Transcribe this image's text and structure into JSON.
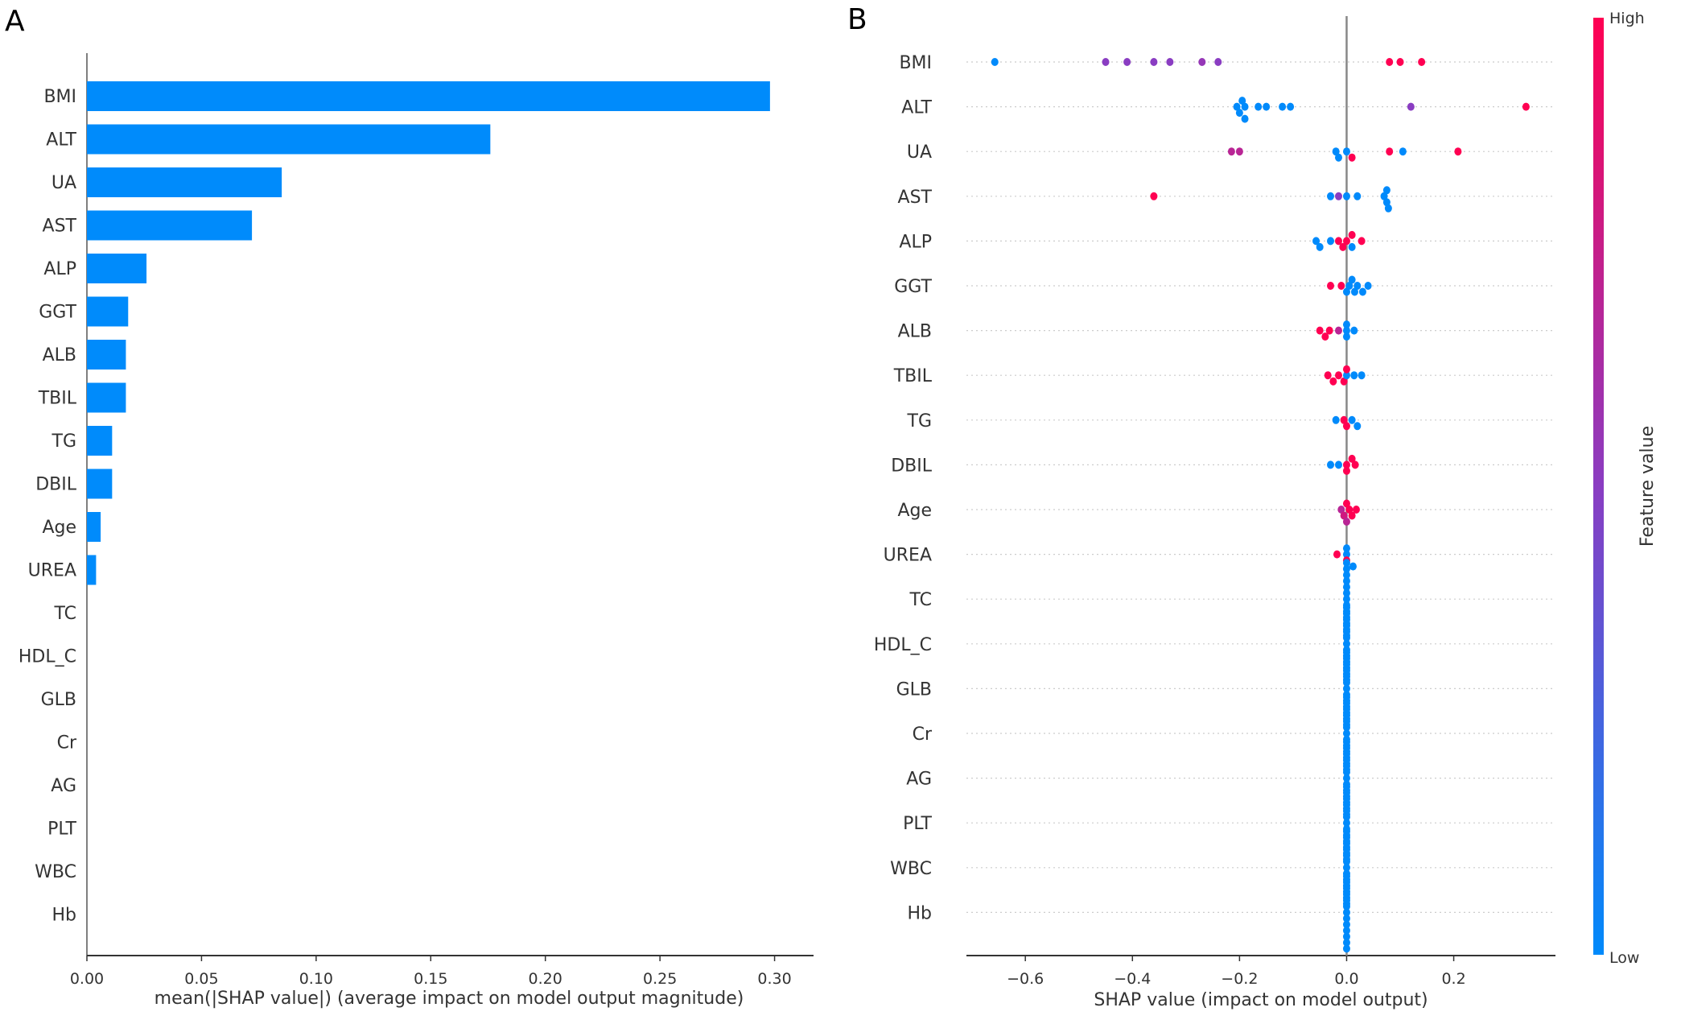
{
  "panels": {
    "a_label": "A",
    "b_label": "B"
  },
  "colors": {
    "bar": "#008bfb",
    "low": "#008afb",
    "mid": "#8a3dc2",
    "high": "#ff0052"
  },
  "chart_data": [
    {
      "type": "bar",
      "orientation": "horizontal",
      "categories": [
        "BMI",
        "ALT",
        "UA",
        "AST",
        "ALP",
        "GGT",
        "ALB",
        "TBIL",
        "TG",
        "DBIL",
        "Age",
        "UREA",
        "TC",
        "HDL_C",
        "GLB",
        "Cr",
        "AG",
        "PLT",
        "WBC",
        "Hb"
      ],
      "values": [
        0.298,
        0.176,
        0.085,
        0.072,
        0.026,
        0.018,
        0.017,
        0.017,
        0.011,
        0.011,
        0.006,
        0.004,
        0,
        0,
        0,
        0,
        0,
        0,
        0,
        0
      ],
      "xlabel": "mean(|SHAP value|) (average impact on model output magnitude)",
      "xlim": [
        0,
        0.317
      ],
      "xticks": [
        "0.00",
        "0.05",
        "0.10",
        "0.15",
        "0.20",
        "0.25",
        "0.30"
      ],
      "grid": false
    },
    {
      "type": "scatter",
      "subtype": "beeswarm",
      "categories": [
        "BMI",
        "ALT",
        "UA",
        "AST",
        "ALP",
        "GGT",
        "ALB",
        "TBIL",
        "TG",
        "DBIL",
        "Age",
        "UREA",
        "TC",
        "HDL_C",
        "GLB",
        "Cr",
        "AG",
        "PLT",
        "WBC",
        "Hb"
      ],
      "points": [
        [
          [
            -0.657,
            0
          ],
          [
            -0.45,
            0.5
          ],
          [
            -0.41,
            0.5
          ],
          [
            -0.36,
            0.5
          ],
          [
            -0.33,
            0.5
          ],
          [
            -0.27,
            0.55
          ],
          [
            -0.24,
            0.5
          ],
          [
            0.08,
            1
          ],
          [
            0.1,
            1
          ],
          [
            0.14,
            1
          ]
        ],
        [
          [
            -0.205,
            0
          ],
          [
            -0.2,
            0
          ],
          [
            -0.195,
            0
          ],
          [
            -0.19,
            0
          ],
          [
            -0.19,
            0
          ],
          [
            -0.165,
            0
          ],
          [
            -0.15,
            0
          ],
          [
            -0.12,
            0
          ],
          [
            -0.105,
            0
          ],
          [
            0.12,
            0.5
          ],
          [
            0.335,
            1
          ]
        ],
        [
          [
            -0.215,
            0.7
          ],
          [
            -0.2,
            0.7
          ],
          [
            -0.02,
            0
          ],
          [
            -0.015,
            0
          ],
          [
            0.0,
            0
          ],
          [
            0.01,
            1
          ],
          [
            0.08,
            1
          ],
          [
            0.105,
            0
          ],
          [
            0.208,
            1
          ]
        ],
        [
          [
            -0.36,
            1
          ],
          [
            -0.03,
            0
          ],
          [
            -0.015,
            0.5
          ],
          [
            0.0,
            0
          ],
          [
            0.02,
            0
          ],
          [
            0.07,
            0
          ],
          [
            0.075,
            0
          ],
          [
            0.075,
            0
          ],
          [
            0.078,
            0
          ]
        ],
        [
          [
            -0.057,
            0
          ],
          [
            -0.05,
            0
          ],
          [
            -0.03,
            0
          ],
          [
            -0.015,
            1
          ],
          [
            -0.007,
            1
          ],
          [
            0.0,
            1
          ],
          [
            0.01,
            0
          ],
          [
            0.01,
            1
          ],
          [
            0.028,
            1
          ]
        ],
        [
          [
            -0.03,
            1
          ],
          [
            -0.01,
            1
          ],
          [
            0.0,
            0
          ],
          [
            0.005,
            0
          ],
          [
            0.01,
            0
          ],
          [
            0.015,
            0
          ],
          [
            0.02,
            0
          ],
          [
            0.03,
            0
          ],
          [
            0.04,
            0
          ]
        ],
        [
          [
            -0.05,
            1
          ],
          [
            -0.04,
            1
          ],
          [
            -0.032,
            1
          ],
          [
            -0.015,
            0.7
          ],
          [
            0.0,
            0
          ],
          [
            0.0,
            0
          ],
          [
            0.0,
            0
          ],
          [
            0.014,
            0
          ]
        ],
        [
          [
            -0.035,
            1
          ],
          [
            -0.025,
            1
          ],
          [
            -0.015,
            1
          ],
          [
            -0.005,
            1
          ],
          [
            0.0,
            0
          ],
          [
            0.0,
            1
          ],
          [
            0.014,
            0
          ],
          [
            0.028,
            0
          ]
        ],
        [
          [
            -0.02,
            0
          ],
          [
            -0.005,
            1
          ],
          [
            0.0,
            1
          ],
          [
            0.01,
            0
          ],
          [
            0.02,
            0
          ]
        ],
        [
          [
            -0.03,
            0
          ],
          [
            -0.015,
            0
          ],
          [
            0.0,
            1
          ],
          [
            0.0,
            1
          ],
          [
            0.01,
            1
          ],
          [
            0.016,
            1
          ]
        ],
        [
          [
            -0.01,
            0.7
          ],
          [
            -0.005,
            0.8
          ],
          [
            0.0,
            1
          ],
          [
            0.0,
            0.7
          ],
          [
            0.005,
            1
          ],
          [
            0.01,
            1
          ],
          [
            0.018,
            1
          ]
        ],
        [
          [
            -0.018,
            1
          ],
          [
            0.0,
            0
          ],
          [
            0.0,
            1
          ],
          [
            0.0,
            0
          ],
          [
            0.012,
            0
          ]
        ],
        [
          [
            0,
            0
          ],
          [
            0,
            0
          ],
          [
            0,
            0
          ],
          [
            0,
            0
          ],
          [
            0,
            0
          ],
          [
            0,
            0
          ],
          [
            0,
            0
          ],
          [
            0,
            0
          ],
          [
            0,
            0
          ],
          [
            0,
            0
          ],
          [
            0,
            0
          ],
          [
            0,
            0
          ],
          [
            0,
            0
          ]
        ],
        [
          [
            0,
            0
          ],
          [
            0,
            0
          ],
          [
            0,
            0
          ],
          [
            0,
            0
          ],
          [
            0,
            0
          ],
          [
            0,
            0
          ],
          [
            0,
            0
          ],
          [
            0,
            0
          ],
          [
            0,
            0
          ],
          [
            0,
            0
          ],
          [
            0,
            0
          ],
          [
            0,
            0
          ],
          [
            0,
            0
          ]
        ],
        [
          [
            0,
            0
          ],
          [
            0,
            0
          ],
          [
            0,
            0
          ],
          [
            0,
            0
          ],
          [
            0,
            0
          ],
          [
            0,
            0
          ],
          [
            0,
            0
          ],
          [
            0,
            0
          ],
          [
            0,
            0
          ],
          [
            0,
            0
          ],
          [
            0,
            0
          ],
          [
            0,
            0
          ],
          [
            0,
            0
          ]
        ],
        [
          [
            0,
            0
          ],
          [
            0,
            0
          ],
          [
            0,
            0
          ],
          [
            0,
            0
          ],
          [
            0,
            0
          ],
          [
            0,
            0
          ],
          [
            0,
            0
          ],
          [
            0,
            0
          ],
          [
            0,
            0
          ],
          [
            0,
            0
          ],
          [
            0,
            0
          ],
          [
            0,
            0
          ],
          [
            0,
            0
          ]
        ],
        [
          [
            0,
            0
          ],
          [
            0,
            0
          ],
          [
            0,
            0
          ],
          [
            0,
            0
          ],
          [
            0,
            0
          ],
          [
            0,
            0
          ],
          [
            0,
            0
          ],
          [
            0,
            0
          ],
          [
            0,
            0
          ],
          [
            0,
            0
          ],
          [
            0,
            0
          ],
          [
            0,
            0
          ],
          [
            0,
            0
          ]
        ],
        [
          [
            0,
            0
          ],
          [
            0,
            0
          ],
          [
            0,
            0
          ],
          [
            0,
            0
          ],
          [
            0,
            0
          ],
          [
            0,
            0
          ],
          [
            0,
            0
          ],
          [
            0,
            0
          ],
          [
            0,
            0
          ],
          [
            0,
            0
          ],
          [
            0,
            0
          ],
          [
            0,
            0
          ],
          [
            0,
            0
          ]
        ],
        [
          [
            0,
            0
          ],
          [
            0,
            0
          ],
          [
            0,
            0
          ],
          [
            0,
            0
          ],
          [
            0,
            0
          ],
          [
            0,
            0
          ],
          [
            0,
            0
          ],
          [
            0,
            0
          ],
          [
            0,
            0
          ],
          [
            0,
            0
          ],
          [
            0,
            0
          ],
          [
            0,
            0
          ],
          [
            0,
            0
          ]
        ],
        [
          [
            0,
            0
          ],
          [
            0,
            0
          ],
          [
            0,
            0
          ],
          [
            0,
            0
          ],
          [
            0,
            0
          ],
          [
            0,
            0
          ],
          [
            0,
            0
          ],
          [
            0,
            0
          ],
          [
            0,
            0
          ],
          [
            0,
            0
          ],
          [
            0,
            0
          ],
          [
            0,
            0
          ],
          [
            0,
            0
          ]
        ]
      ],
      "xlabel": "SHAP value (impact on model output)",
      "xlim": [
        -0.71,
        0.39
      ],
      "xticks": [
        -0.6,
        -0.4,
        -0.2,
        0.0,
        0.2
      ],
      "xtick_labels": [
        "−0.6",
        "−0.4",
        "−0.2",
        "0.0",
        "0.2"
      ],
      "colorbar": {
        "title": "Feature value",
        "high": "High",
        "low": "Low"
      },
      "grid": false
    }
  ]
}
